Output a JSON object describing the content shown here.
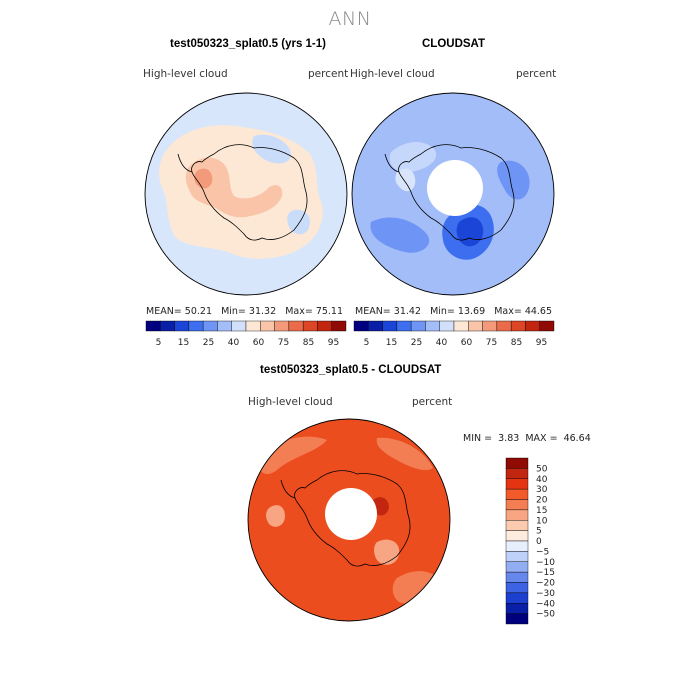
{
  "title": "ANN",
  "panels": [
    {
      "id": "model",
      "title": "test050323_splat0.5 (yrs 1-1)",
      "variable": "High-level cloud",
      "units": "percent",
      "stats": {
        "mean_label": "MEAN=",
        "mean": "50.21",
        "min_label": "Min=",
        "min": "31.32",
        "max_label": "Max=",
        "max": "75.11"
      }
    },
    {
      "id": "cloudsat",
      "title": "CLOUDSAT",
      "variable": "High-level cloud",
      "units": "percent",
      "stats": {
        "mean_label": "MEAN=",
        "mean": "31.42",
        "min_label": "Min=",
        "min": "13.69",
        "max_label": "Max=",
        "max": "44.65"
      }
    },
    {
      "id": "difference",
      "title": "test050323_splat0.5 - CLOUDSAT",
      "variable": "High-level cloud",
      "units": "percent",
      "stats": {
        "min_label": "MIN =",
        "min": "3.83",
        "max_label": "MAX =",
        "max": "46.64"
      }
    }
  ],
  "abs_colorbar": {
    "colors": [
      "#00007f",
      "#0a1fa8",
      "#1b45d6",
      "#3d6ef0",
      "#6e94f5",
      "#a3bdf8",
      "#d2e0fb",
      "#fde8d6",
      "#f9c4a8",
      "#f29a7a",
      "#e96b49",
      "#dc4525",
      "#c22510",
      "#8f0b04"
    ],
    "labels": [
      "5",
      "15",
      "25",
      "40",
      "60",
      "75",
      "85",
      "95"
    ]
  },
  "diff_colorbar": {
    "colors": [
      "#8f0b04",
      "#c22510",
      "#e53412",
      "#f25a2a",
      "#f47e54",
      "#f7a582",
      "#fbcbb0",
      "#fdebdd",
      "#e7eefc",
      "#bfd1f8",
      "#93adf3",
      "#6688ed",
      "#3d62e3",
      "#1d3fd0",
      "#0a1fa8",
      "#00007f"
    ],
    "labels": [
      "50",
      "40",
      "30",
      "20",
      "15",
      "10",
      "5",
      "0",
      "−5",
      "−10",
      "−15",
      "−20",
      "−30",
      "−40",
      "−50"
    ]
  }
}
